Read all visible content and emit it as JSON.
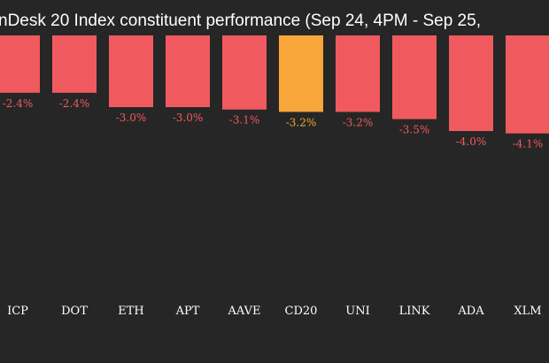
{
  "chart_data": {
    "type": "bar",
    "title": "nDesk 20 Index constituent performance (Sep 24, 4PM - Sep 25,",
    "categories": [
      "ICP",
      "DOT",
      "ETH",
      "APT",
      "AAVE",
      "CD20",
      "UNI",
      "LINK",
      "ADA",
      "XLM"
    ],
    "values": [
      -2.4,
      -2.4,
      -3.0,
      -3.0,
      -3.1,
      -3.2,
      -3.2,
      -3.5,
      -4.0,
      -4.1
    ],
    "value_labels": [
      "-2.4%",
      "-2.4%",
      "-3.0%",
      "-3.0%",
      "-3.1%",
      "-3.2%",
      "-3.2%",
      "-3.5%",
      "-4.0%",
      "-4.1%"
    ],
    "colors": [
      "#f05a5e",
      "#f05a5e",
      "#f05a5e",
      "#f05a5e",
      "#f05a5e",
      "#f9a63b",
      "#f05a5e",
      "#f05a5e",
      "#f05a5e",
      "#f05a5e"
    ],
    "ylim": [
      -10,
      0
    ]
  }
}
